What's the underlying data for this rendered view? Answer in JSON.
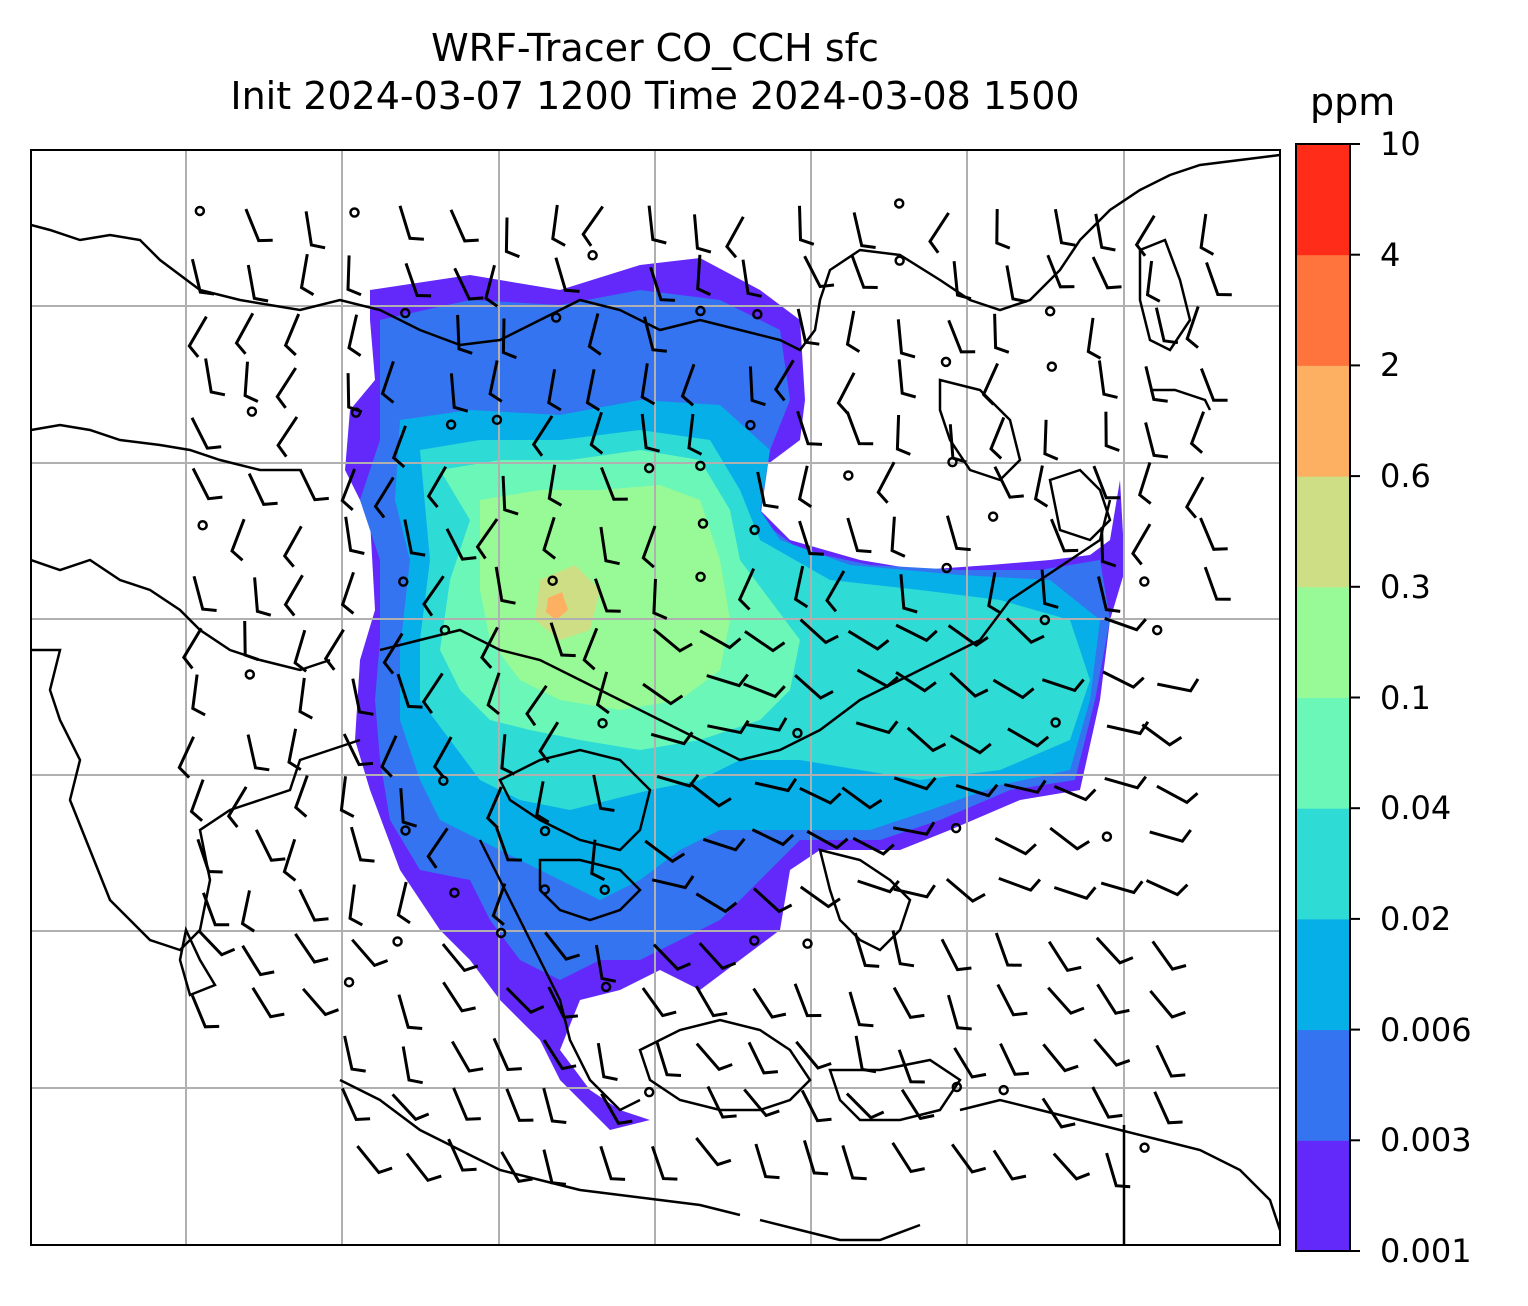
{
  "title": {
    "line1": "WRF-Tracer CO_CCH sfc",
    "line2": "Init 2024-03-07 1200 Time 2024-03-08 1500"
  },
  "colorbar": {
    "unit": "ppm",
    "ticks": [
      "10",
      "4",
      "2",
      "0.6",
      "0.3",
      "0.1",
      "0.04",
      "0.02",
      "0.006",
      "0.003",
      "0.001"
    ],
    "colors": [
      "#6329fb",
      "#3474f0",
      "#07afe8",
      "#2fdbd5",
      "#6af7b7",
      "#98fa96",
      "#cede84",
      "#fdb061",
      "#ff743d",
      "#ff2c1a"
    ]
  },
  "map": {
    "gridline_color": "#b0b0b0",
    "coastline_color": "#000000",
    "wind_barb_color": "#000000"
  }
}
